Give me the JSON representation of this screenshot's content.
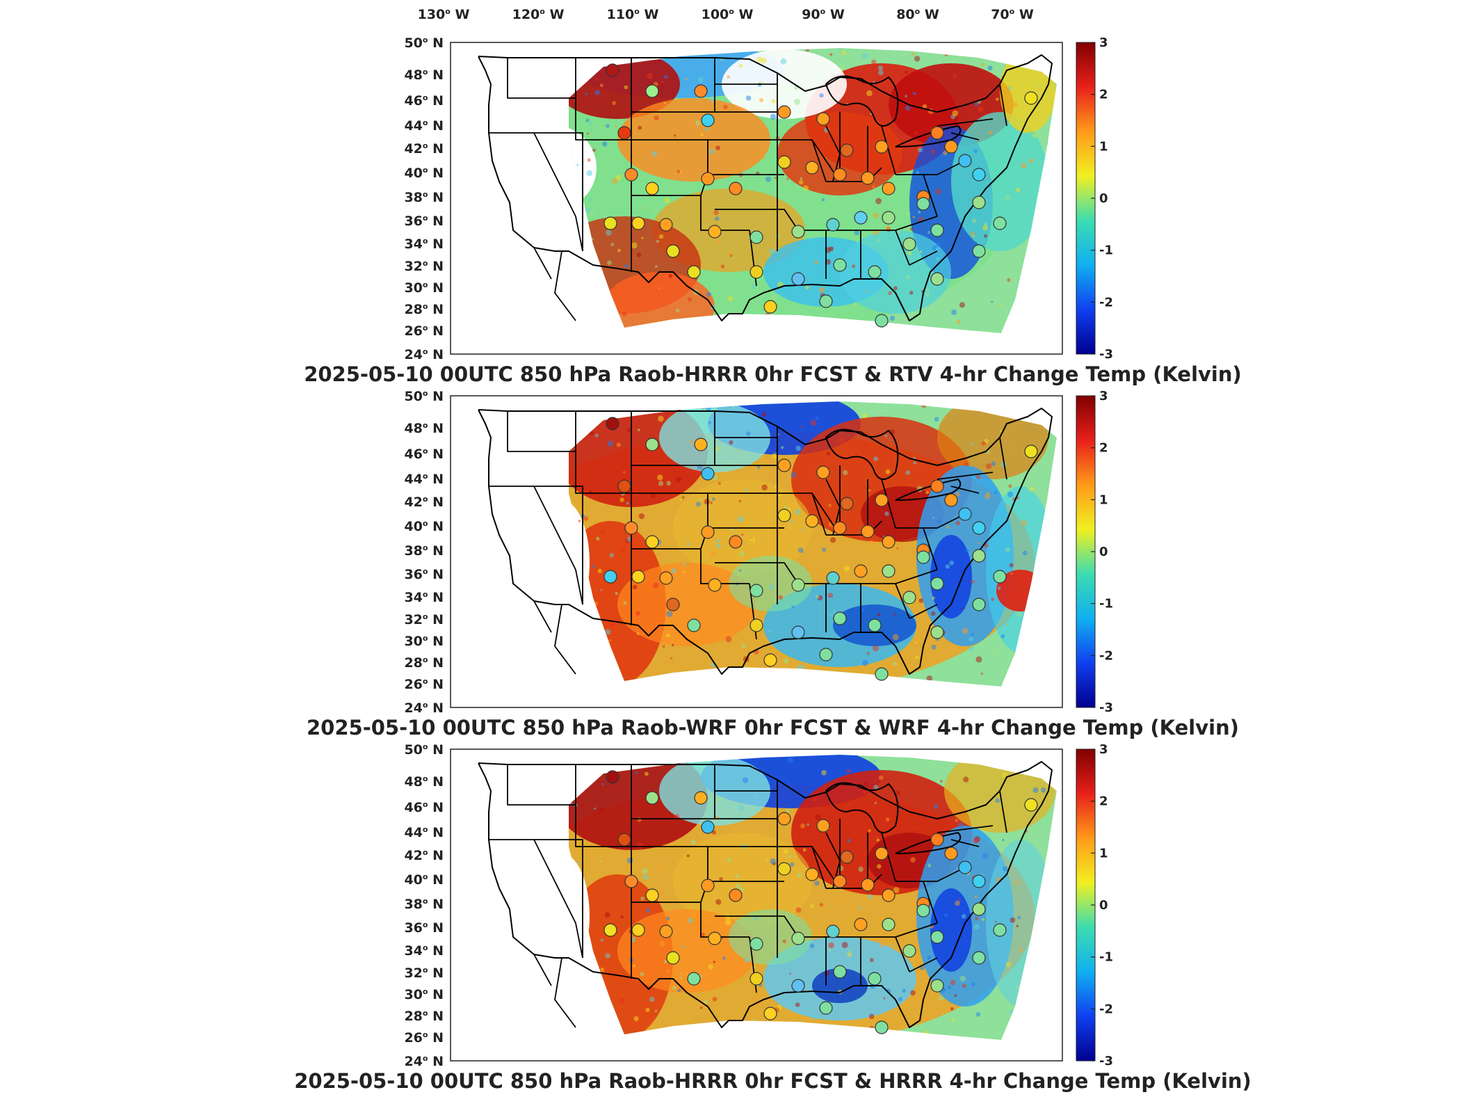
{
  "figure": {
    "lon_labels": [
      {
        "deg": "130",
        "hemi": "W"
      },
      {
        "deg": "120",
        "hemi": "W"
      },
      {
        "deg": "110",
        "hemi": "W"
      },
      {
        "deg": "100",
        "hemi": "W"
      },
      {
        "deg": "90",
        "hemi": "W"
      },
      {
        "deg": "80",
        "hemi": "W"
      },
      {
        "deg": "70",
        "hemi": "W"
      }
    ],
    "lat_labels": [
      {
        "deg": "50",
        "hemi": "N"
      },
      {
        "deg": "48",
        "hemi": "N"
      },
      {
        "deg": "46",
        "hemi": "N"
      },
      {
        "deg": "44",
        "hemi": "N"
      },
      {
        "deg": "42",
        "hemi": "N"
      },
      {
        "deg": "40",
        "hemi": "N"
      },
      {
        "deg": "38",
        "hemi": "N"
      },
      {
        "deg": "36",
        "hemi": "N"
      },
      {
        "deg": "34",
        "hemi": "N"
      },
      {
        "deg": "32",
        "hemi": "N"
      },
      {
        "deg": "30",
        "hemi": "N"
      },
      {
        "deg": "28",
        "hemi": "N"
      },
      {
        "deg": "26",
        "hemi": "N"
      },
      {
        "deg": "24",
        "hemi": "N"
      }
    ],
    "colorbar": {
      "ticks": [
        "3",
        "2",
        "1",
        "0",
        "-1",
        "-2",
        "-3"
      ],
      "stops": [
        "#800000",
        "#e8201a",
        "#ff9a1a",
        "#f0f020",
        "#3ddcb0",
        "#10b0f0",
        "#1040f0",
        "#000090"
      ]
    },
    "panels": [
      {
        "id": "rtv",
        "title": "2025-05-10 00UTC 850 hPa Raob-HRRR 0hr FCST & RTV 4-hr Change Temp (Kelvin)"
      },
      {
        "id": "wrf",
        "title": "2025-05-10 00UTC 850 hPa Raob-WRF 0hr FCST & WRF 4-hr Change Temp (Kelvin)"
      },
      {
        "id": "hrrr",
        "title": "2025-05-10 00UTC 850 hPa Raob-HRRR 0hr FCST & HRRR 4-hr Change Temp (Kelvin)"
      }
    ]
  }
}
